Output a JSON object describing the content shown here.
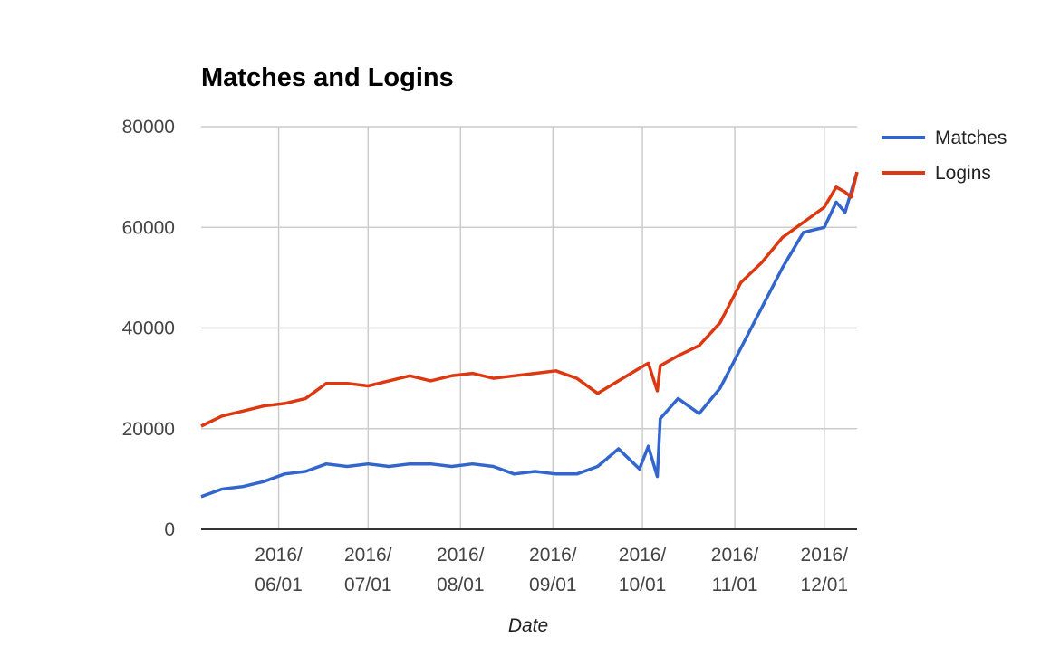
{
  "chart_data": {
    "type": "line",
    "title": "Matches and Logins",
    "xlabel": "Date",
    "ylabel": "",
    "ylim": [
      0,
      80000
    ],
    "yticks": [
      "0",
      "20000",
      "40000",
      "60000",
      "80000"
    ],
    "xticks": [
      {
        "date": "2016-06-01",
        "line1": "2016/",
        "line2": "06/01"
      },
      {
        "date": "2016-07-01",
        "line1": "2016/",
        "line2": "07/01"
      },
      {
        "date": "2016-08-01",
        "line1": "2016/",
        "line2": "08/01"
      },
      {
        "date": "2016-09-01",
        "line1": "2016/",
        "line2": "09/01"
      },
      {
        "date": "2016-10-01",
        "line1": "2016/",
        "line2": "10/01"
      },
      {
        "date": "2016-11-01",
        "line1": "2016/",
        "line2": "11/01"
      },
      {
        "date": "2016-12-01",
        "line1": "2016/",
        "line2": "12/01"
      }
    ],
    "xrange": [
      "2016-05-06",
      "2016-12-12"
    ],
    "grid": true,
    "legend_position": "right",
    "x": [
      "2016-05-06",
      "2016-05-13",
      "2016-05-20",
      "2016-05-27",
      "2016-06-03",
      "2016-06-10",
      "2016-06-17",
      "2016-06-24",
      "2016-07-01",
      "2016-07-08",
      "2016-07-15",
      "2016-07-22",
      "2016-07-29",
      "2016-08-05",
      "2016-08-12",
      "2016-08-19",
      "2016-08-26",
      "2016-09-02",
      "2016-09-09",
      "2016-09-16",
      "2016-09-23",
      "2016-09-30",
      "2016-10-03",
      "2016-10-06",
      "2016-10-07",
      "2016-10-13",
      "2016-10-20",
      "2016-10-27",
      "2016-11-03",
      "2016-11-10",
      "2016-11-17",
      "2016-11-24",
      "2016-12-01",
      "2016-12-05",
      "2016-12-08",
      "2016-12-10",
      "2016-12-12"
    ],
    "series": [
      {
        "name": "Matches",
        "color": "#3366cc",
        "values": [
          6500,
          8000,
          8500,
          9500,
          11000,
          11500,
          13000,
          12500,
          13000,
          12500,
          13000,
          13000,
          12500,
          13000,
          12500,
          11000,
          11500,
          11000,
          11000,
          12500,
          16000,
          12000,
          16500,
          10500,
          22000,
          26000,
          23000,
          28000,
          36000,
          44000,
          52000,
          59000,
          60000,
          65000,
          63000,
          67000,
          71000
        ]
      },
      {
        "name": "Logins",
        "color": "#dc3912",
        "values": [
          20500,
          22500,
          23500,
          24500,
          25000,
          26000,
          29000,
          29000,
          28500,
          29500,
          30500,
          29500,
          30500,
          31000,
          30000,
          30500,
          31000,
          31500,
          30000,
          27000,
          29500,
          32000,
          33000,
          27500,
          32500,
          34500,
          36500,
          41000,
          49000,
          53000,
          58000,
          61000,
          64000,
          68000,
          67000,
          66000,
          71000
        ]
      }
    ]
  }
}
